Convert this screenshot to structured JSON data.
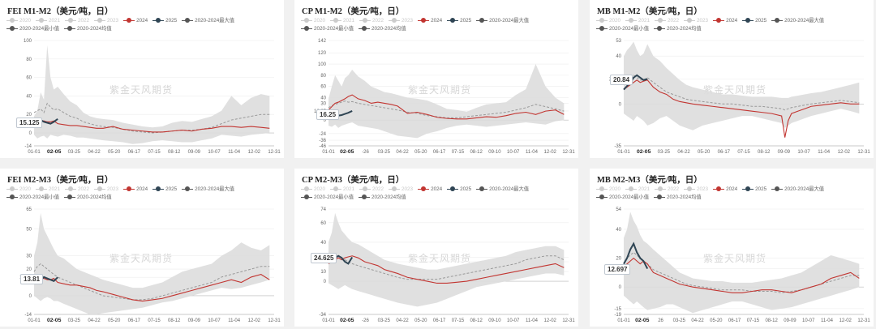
{
  "watermark": "紫金天风期货",
  "legend": [
    {
      "label": "2020",
      "color": "#cccccc",
      "faded": true
    },
    {
      "label": "2021",
      "color": "#cccccc",
      "faded": true
    },
    {
      "label": "2022",
      "color": "#cccccc",
      "faded": true
    },
    {
      "label": "2023",
      "color": "#cccccc",
      "faded": true
    },
    {
      "label": "2024",
      "color": "#c23531",
      "faded": false
    },
    {
      "label": "2025",
      "color": "#2f4554",
      "faded": false
    },
    {
      "label": "2020-2024最大值",
      "color": "#555555",
      "faded": false
    },
    {
      "label": "2020-2024最小值",
      "color": "#555555",
      "faded": false
    },
    {
      "label": "2020-2024均值",
      "color": "#555555",
      "faded": false
    }
  ],
  "colors": {
    "y2024": "#c23531",
    "y2025": "#2f4554",
    "range": "#dddddd",
    "mean": "#999999",
    "axis": "#666666",
    "grid": "#eeeeee"
  },
  "chart_data": [
    {
      "id": "fei-m1m2",
      "title": "FEI M1-M2（美元/吨，日）",
      "type": "line",
      "xticks": [
        "01-01",
        "02-05",
        "03-25",
        "04-22",
        "05-20",
        "06-17",
        "07-15",
        "08-12",
        "09-09",
        "10-07",
        "11-04",
        "12-02",
        "12-31"
      ],
      "yticks": [
        100,
        80,
        60,
        40,
        20,
        0,
        -14
      ],
      "ylim": [
        -14,
        100
      ],
      "last_label": "15.125",
      "x": [
        0,
        5,
        10,
        15,
        20,
        25,
        30,
        36,
        45,
        55,
        65,
        75,
        85,
        95,
        105,
        120,
        135,
        150,
        165,
        180,
        195,
        210,
        225,
        240,
        255,
        270,
        285,
        300,
        315,
        330,
        345,
        358
      ],
      "y2024": [
        12,
        14,
        13,
        13,
        12,
        12,
        13,
        10,
        9,
        8,
        8,
        7,
        6,
        5,
        5,
        7,
        4,
        3,
        2,
        1,
        1,
        2,
        3,
        2,
        4,
        5,
        7,
        7,
        6,
        7,
        6,
        5
      ],
      "y2025": [
        12,
        13,
        14,
        12,
        11,
        10,
        12,
        15.125
      ],
      "max": [
        18,
        24,
        44,
        36,
        95,
        60,
        47,
        50,
        42,
        34,
        30,
        22,
        18,
        16,
        15,
        14,
        11,
        9,
        7,
        6,
        7,
        11,
        13,
        12,
        15,
        18,
        24,
        40,
        30,
        38,
        42,
        40
      ],
      "min": [
        -2,
        -6,
        -4,
        -3,
        -6,
        -2,
        -3,
        -4,
        -2,
        -3,
        -5,
        -5,
        -6,
        -7,
        -8,
        -9,
        -10,
        -12,
        -11,
        -9,
        -8,
        -9,
        -10,
        -10,
        -8,
        -6,
        -2,
        -3,
        -4,
        -2,
        -1,
        0
      ],
      "mean": [
        22,
        24,
        26,
        22,
        32,
        28,
        25,
        26,
        22,
        18,
        16,
        12,
        10,
        8,
        7,
        6,
        4,
        2,
        1,
        0,
        1,
        2,
        3,
        3,
        4,
        6,
        10,
        14,
        16,
        18,
        20,
        20
      ]
    },
    {
      "id": "cp-m1m2",
      "title": "CP M1-M2（美元/吨，日）",
      "type": "line",
      "xticks": [
        "01-01",
        "02-05",
        "-26",
        "03-25",
        "04-22",
        "05-20",
        "06-17",
        "07-15",
        "08-12",
        "09-10",
        "10-07",
        "11-04",
        "12-02",
        "12-31"
      ],
      "yticks": [
        142,
        120,
        100,
        80,
        60,
        40,
        30,
        16.25,
        0,
        -24,
        -36,
        -46
      ],
      "ylim": [
        -46,
        142
      ],
      "last_label": "16.25",
      "x": [
        0,
        5,
        10,
        15,
        20,
        25,
        30,
        36,
        45,
        55,
        65,
        75,
        85,
        95,
        105,
        120,
        135,
        150,
        165,
        180,
        195,
        210,
        225,
        240,
        255,
        270,
        285,
        300,
        315,
        330,
        345,
        358
      ],
      "y2024": [
        18,
        24,
        30,
        32,
        35,
        38,
        42,
        45,
        38,
        35,
        30,
        32,
        30,
        28,
        25,
        12,
        14,
        10,
        5,
        3,
        2,
        2,
        4,
        6,
        5,
        8,
        12,
        14,
        10,
        16,
        18,
        10
      ],
      "y2025": [
        8,
        9,
        10,
        8,
        9,
        11,
        13,
        16.25
      ],
      "max": [
        38,
        60,
        80,
        70,
        60,
        75,
        80,
        90,
        78,
        70,
        60,
        55,
        50,
        48,
        45,
        40,
        38,
        35,
        28,
        20,
        18,
        15,
        22,
        28,
        30,
        32,
        45,
        55,
        100,
        60,
        40,
        30
      ],
      "min": [
        -10,
        -12,
        -8,
        -14,
        -10,
        -8,
        -6,
        -4,
        -10,
        -12,
        -14,
        -16,
        -20,
        -24,
        -28,
        -30,
        -32,
        -24,
        -20,
        -14,
        -10,
        -8,
        -10,
        -12,
        -10,
        -8,
        -6,
        -4,
        -6,
        -8,
        -2,
        0
      ],
      "mean": [
        22,
        26,
        28,
        30,
        32,
        34,
        32,
        33,
        30,
        28,
        26,
        24,
        22,
        20,
        18,
        14,
        12,
        8,
        6,
        4,
        4,
        6,
        8,
        10,
        12,
        14,
        18,
        22,
        28,
        24,
        20,
        16
      ]
    },
    {
      "id": "mb-m1m2",
      "title": "MB M1-M2（美元/吨，日）",
      "type": "line",
      "xticks": [
        "01-01",
        "02-05",
        "03-25",
        "04-22",
        "05-20",
        "06-17",
        "07-15",
        "08-12",
        "09-09",
        "10-07",
        "11-04",
        "12-02",
        "12-31"
      ],
      "yticks": [
        53,
        40,
        20.84,
        0,
        -35
      ],
      "ylim": [
        -35,
        53
      ],
      "last_label": "20.84",
      "x": [
        0,
        5,
        10,
        15,
        20,
        25,
        30,
        36,
        45,
        55,
        65,
        75,
        85,
        95,
        105,
        120,
        135,
        150,
        165,
        180,
        195,
        210,
        225,
        240,
        245,
        250,
        255,
        265,
        275,
        285,
        300,
        315,
        330,
        345,
        358
      ],
      "y2024": [
        12,
        14,
        16,
        18,
        20,
        18,
        19,
        20,
        14,
        10,
        8,
        4,
        2,
        1,
        0,
        -1,
        -2,
        -3,
        -4,
        -5,
        -6,
        -7,
        -8,
        -10,
        -28,
        -14,
        -8,
        -6,
        -4,
        -2,
        -1,
        0,
        1,
        0,
        0
      ],
      "y2025": [
        12,
        15,
        18,
        22,
        24,
        22,
        20,
        20.84
      ],
      "max": [
        40,
        45,
        48,
        52,
        45,
        40,
        42,
        50,
        40,
        36,
        30,
        25,
        20,
        16,
        14,
        12,
        10,
        8,
        8,
        7,
        6,
        6,
        6,
        5,
        5,
        5,
        6,
        7,
        8,
        9,
        10,
        12,
        14,
        16,
        18
      ],
      "min": [
        -8,
        -10,
        -12,
        -14,
        -10,
        -12,
        -14,
        -18,
        -16,
        -12,
        -10,
        -14,
        -18,
        -20,
        -22,
        -18,
        -16,
        -14,
        -12,
        -10,
        -10,
        -12,
        -14,
        -16,
        -20,
        -18,
        -16,
        -14,
        -12,
        -10,
        -8,
        -6,
        -4,
        -6,
        -8
      ],
      "mean": [
        18,
        20,
        22,
        24,
        22,
        20,
        20,
        22,
        18,
        14,
        10,
        8,
        6,
        4,
        3,
        2,
        1,
        0,
        0,
        -1,
        -2,
        -2,
        -3,
        -4,
        -5,
        -4,
        -3,
        -2,
        -1,
        0,
        1,
        2,
        3,
        2,
        1
      ]
    },
    {
      "id": "fei-m2m3",
      "title": "FEI M2-M3（美元/吨，日）",
      "type": "line",
      "xticks": [
        "01-01",
        "02-05",
        "03-25",
        "04-22",
        "05-20",
        "06-17",
        "07-15",
        "08-12",
        "09-09",
        "10-07",
        "11-04",
        "12-02",
        "12-31"
      ],
      "yticks": [
        65,
        50,
        30,
        20,
        13.81,
        0,
        -14
      ],
      "ylim": [
        -14,
        65
      ],
      "last_label": "13.81",
      "x": [
        0,
        5,
        10,
        15,
        20,
        25,
        30,
        36,
        45,
        55,
        65,
        75,
        85,
        95,
        105,
        120,
        135,
        150,
        165,
        180,
        195,
        210,
        225,
        240,
        255,
        270,
        285,
        300,
        315,
        330,
        345,
        358
      ],
      "y2024": [
        12,
        14,
        13,
        13,
        12,
        12,
        13,
        10,
        9,
        8,
        8,
        7,
        6,
        4,
        3,
        1,
        -1,
        -3,
        -4,
        -3,
        -2,
        0,
        2,
        4,
        6,
        8,
        10,
        12,
        10,
        14,
        16,
        12
      ],
      "y2025": [
        12,
        13,
        12,
        14,
        13,
        12,
        11,
        13.81
      ],
      "max": [
        30,
        40,
        62,
        50,
        45,
        40,
        35,
        30,
        28,
        24,
        20,
        18,
        16,
        14,
        12,
        10,
        8,
        6,
        6,
        8,
        10,
        14,
        18,
        20,
        22,
        24,
        30,
        34,
        40,
        36,
        34,
        38
      ],
      "min": [
        0,
        -2,
        -4,
        -2,
        -1,
        -2,
        -4,
        -4,
        -6,
        -8,
        -10,
        -12,
        -14,
        -14,
        -13,
        -12,
        -11,
        -10,
        -9,
        -7,
        -5,
        -4,
        -2,
        0,
        2,
        4,
        6,
        5,
        6,
        8,
        10,
        12
      ],
      "mean": [
        18,
        22,
        24,
        22,
        20,
        18,
        16,
        14,
        12,
        10,
        8,
        6,
        4,
        2,
        0,
        -1,
        -2,
        -3,
        -3,
        -2,
        0,
        2,
        4,
        6,
        8,
        10,
        14,
        16,
        18,
        20,
        22,
        22
      ]
    },
    {
      "id": "cp-m2m3",
      "title": "CP M2-M3（美元/吨，日）",
      "type": "line",
      "xticks": [
        "01-01",
        "02-05",
        "-26",
        "03-25",
        "04-22",
        "05-20",
        "06-17",
        "07-15",
        "08-12",
        "09-10",
        "10-07",
        "11-04",
        "12-02",
        "12-31"
      ],
      "yticks": [
        74,
        60,
        40,
        24.625,
        20,
        10,
        0,
        -34
      ],
      "ylim": [
        -34,
        74
      ],
      "last_label": "24.625",
      "x": [
        0,
        5,
        10,
        15,
        20,
        25,
        30,
        36,
        45,
        55,
        65,
        75,
        85,
        95,
        105,
        120,
        135,
        150,
        165,
        180,
        195,
        210,
        225,
        240,
        255,
        270,
        285,
        300,
        315,
        330,
        345,
        358
      ],
      "y2024": [
        18,
        20,
        22,
        24,
        22,
        24,
        25,
        26,
        24,
        20,
        18,
        16,
        12,
        10,
        8,
        4,
        2,
        0,
        -2,
        -2,
        -1,
        0,
        2,
        4,
        6,
        8,
        10,
        12,
        14,
        16,
        18,
        14
      ],
      "y2025": [
        20,
        22,
        24,
        26,
        24,
        20,
        18,
        24.625
      ],
      "max": [
        40,
        50,
        70,
        60,
        52,
        48,
        44,
        40,
        38,
        34,
        30,
        26,
        22,
        20,
        18,
        16,
        14,
        12,
        12,
        14,
        16,
        18,
        20,
        22,
        24,
        26,
        30,
        32,
        34,
        36,
        36,
        32
      ],
      "min": [
        -2,
        -4,
        -6,
        -8,
        -6,
        -4,
        -6,
        -8,
        -10,
        -12,
        -14,
        -16,
        -18,
        -20,
        -22,
        -24,
        -26,
        -24,
        -22,
        -18,
        -14,
        -10,
        -6,
        -4,
        -2,
        0,
        2,
        4,
        6,
        8,
        8,
        6
      ],
      "mean": [
        22,
        26,
        28,
        26,
        24,
        22,
        20,
        18,
        16,
        14,
        12,
        10,
        8,
        6,
        4,
        2,
        2,
        2,
        2,
        4,
        6,
        8,
        10,
        12,
        14,
        16,
        18,
        22,
        24,
        26,
        26,
        22
      ]
    },
    {
      "id": "mb-m2m3",
      "title": "MB M2-M3（美元/吨，日）",
      "type": "line",
      "xticks": [
        "01-01",
        "02-05",
        "26",
        "03-25",
        "04-22",
        "05-20",
        "06-17",
        "07-15",
        "08-12",
        "09-09",
        "10-07",
        "11-04",
        "12-02",
        "12-31"
      ],
      "yticks": [
        54,
        40,
        20,
        12.697,
        0,
        -15,
        -19
      ],
      "ylim": [
        -19,
        54
      ],
      "last_label": "12.697",
      "x": [
        0,
        5,
        10,
        15,
        20,
        25,
        30,
        36,
        45,
        55,
        65,
        75,
        85,
        95,
        105,
        120,
        135,
        150,
        165,
        180,
        195,
        210,
        225,
        240,
        255,
        270,
        285,
        300,
        315,
        330,
        345,
        358
      ],
      "y2024": [
        14,
        16,
        18,
        20,
        18,
        16,
        18,
        16,
        10,
        8,
        6,
        4,
        2,
        1,
        0,
        -1,
        -2,
        -3,
        -4,
        -4,
        -3,
        -2,
        -2,
        -3,
        -4,
        -2,
        0,
        2,
        6,
        8,
        10,
        6
      ],
      "y2025": [
        16,
        20,
        26,
        30,
        24,
        20,
        18,
        12.697
      ],
      "max": [
        34,
        40,
        52,
        46,
        42,
        36,
        32,
        30,
        26,
        22,
        18,
        14,
        10,
        8,
        6,
        5,
        4,
        4,
        3,
        3,
        3,
        4,
        5,
        6,
        8,
        10,
        14,
        18,
        22,
        20,
        18,
        16
      ],
      "min": [
        -6,
        -8,
        -10,
        -12,
        -10,
        -12,
        -14,
        -16,
        -15,
        -14,
        -12,
        -12,
        -14,
        -16,
        -18,
        -16,
        -14,
        -12,
        -10,
        -10,
        -12,
        -14,
        -16,
        -15,
        -14,
        -12,
        -10,
        -8,
        -6,
        -4,
        -2,
        0
      ],
      "mean": [
        16,
        20,
        22,
        24,
        22,
        20,
        18,
        16,
        12,
        10,
        8,
        6,
        4,
        2,
        1,
        0,
        -1,
        -2,
        -2,
        -2,
        -3,
        -3,
        -3,
        -4,
        -3,
        -2,
        0,
        2,
        4,
        6,
        8,
        8
      ]
    }
  ]
}
